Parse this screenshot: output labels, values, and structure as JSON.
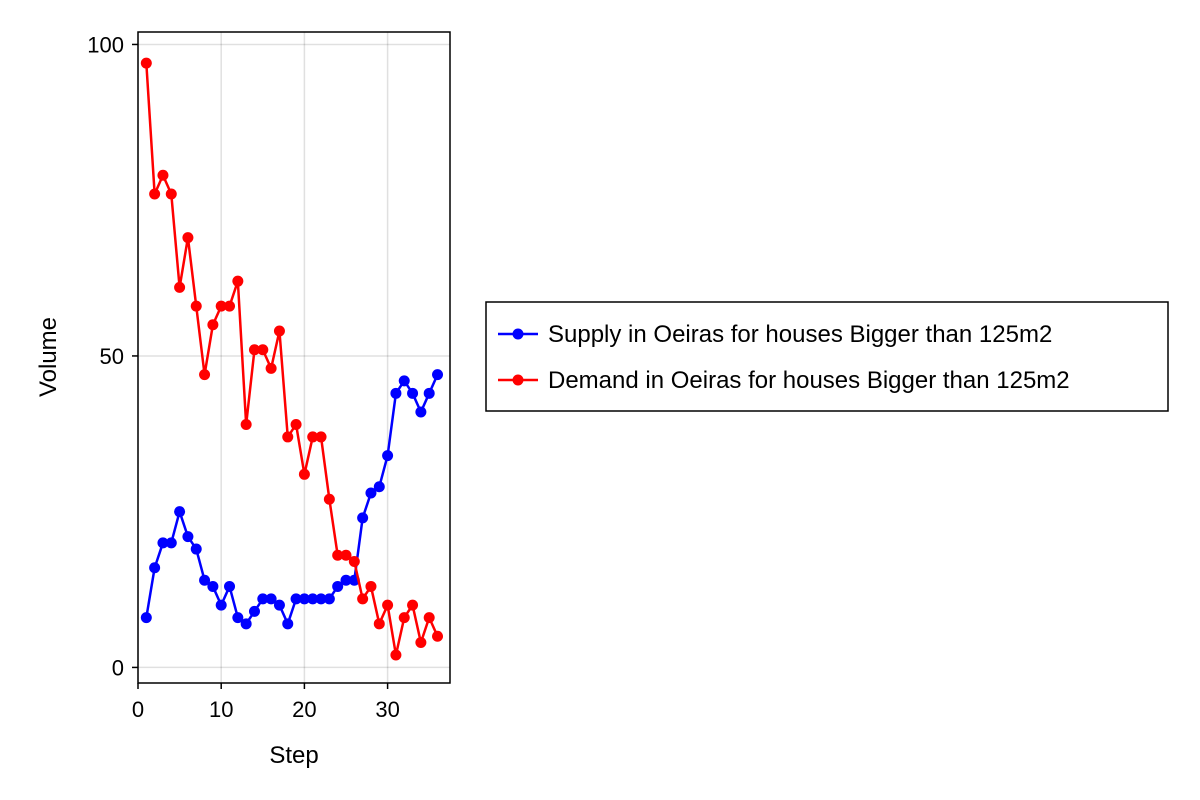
{
  "chart_data": {
    "type": "line",
    "title": "",
    "xlabel": "Step",
    "ylabel": "Volume",
    "xlim": [
      0,
      37.5
    ],
    "ylim": [
      -2.5,
      102
    ],
    "xticks": [
      0,
      10,
      20,
      30
    ],
    "yticks": [
      0,
      50,
      100
    ],
    "grid": true,
    "legend_position": "right",
    "x": [
      1,
      2,
      3,
      4,
      5,
      6,
      7,
      8,
      9,
      10,
      11,
      12,
      13,
      14,
      15,
      16,
      17,
      18,
      19,
      20,
      21,
      22,
      23,
      24,
      25,
      26,
      27,
      28,
      29,
      30,
      31,
      32,
      33,
      34,
      35,
      36
    ],
    "series": [
      {
        "name": "Supply in Oeiras for houses Bigger than 125m2",
        "color": "#0000ff",
        "values": [
          8,
          16,
          20,
          20,
          25,
          21,
          19,
          14,
          13,
          10,
          13,
          8,
          7,
          9,
          11,
          11,
          10,
          7,
          11,
          11,
          11,
          11,
          11,
          13,
          14,
          14,
          24,
          28,
          29,
          34,
          44,
          46,
          44,
          41,
          44,
          47
        ]
      },
      {
        "name": "Demand in Oeiras for houses Bigger than 125m2",
        "color": "#ff0000",
        "values": [
          97,
          76,
          79,
          76,
          61,
          69,
          58,
          47,
          55,
          58,
          58,
          62,
          39,
          51,
          51,
          48,
          54,
          37,
          39,
          31,
          37,
          37,
          27,
          18,
          18,
          17,
          11,
          13,
          7,
          10,
          2,
          8,
          10,
          4,
          8,
          5
        ]
      }
    ]
  }
}
